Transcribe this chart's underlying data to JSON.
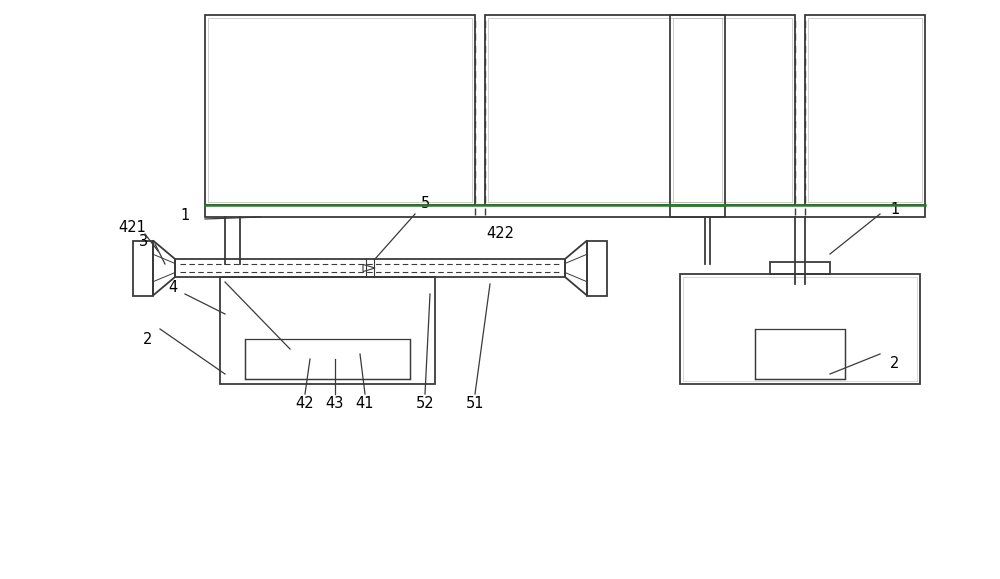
{
  "bg_color": "#ffffff",
  "line_color": "#3a3a3a",
  "fig_w": 10.0,
  "fig_h": 5.79,
  "dpi": 100,
  "lw": 1.3,
  "lw_thin": 0.8,
  "fs": 10.5
}
